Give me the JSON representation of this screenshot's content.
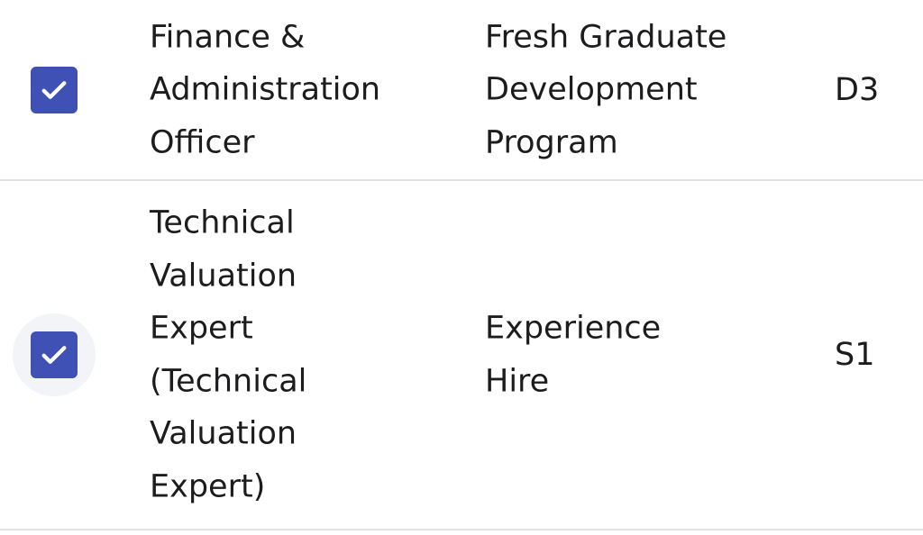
{
  "table": {
    "rows": [
      {
        "checked": true,
        "title": "Finance &\nAdministration\nOfficer",
        "program": "Fresh Graduate\nDevelopment\nProgram",
        "grade": "D3"
      },
      {
        "checked": true,
        "title": "Technical\nValuation\nExpert\n(Technical\nValuation\nExpert)",
        "program": "Experience\nHire",
        "grade": "S1"
      }
    ]
  },
  "colors": {
    "checkbox": "#3f51b5",
    "hover_halo": "#f3f4f8",
    "divider": "#e2e2e2"
  }
}
